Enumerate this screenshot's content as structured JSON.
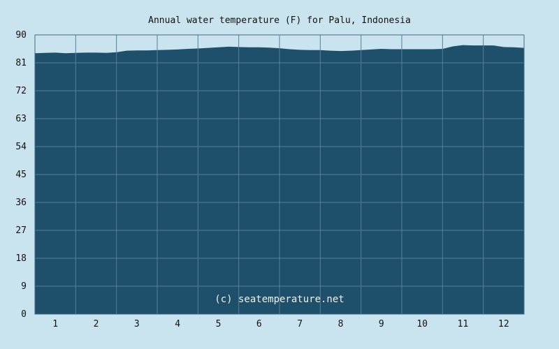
{
  "chart_data": {
    "type": "area",
    "title": "Annual water temperature (F) for Palu, Indonesia",
    "xlabel": "",
    "ylabel": "",
    "ylim": [
      0,
      90
    ],
    "yticks": [
      0,
      9,
      18,
      27,
      36,
      45,
      54,
      63,
      72,
      81,
      90
    ],
    "xlim": [
      0.5,
      12.5
    ],
    "xticks": [
      1,
      2,
      3,
      4,
      5,
      6,
      7,
      8,
      9,
      10,
      11,
      12
    ],
    "grid": true,
    "fill_color": "#1e4f6b",
    "grid_color": "#55809a",
    "background_color": "#c9e3ef",
    "x": [
      0.5,
      0.75,
      1.0,
      1.25,
      1.5,
      1.75,
      2.0,
      2.25,
      2.5,
      2.75,
      3.0,
      3.25,
      3.5,
      3.75,
      4.0,
      4.25,
      4.5,
      4.75,
      5.0,
      5.25,
      5.5,
      5.75,
      6.0,
      6.25,
      6.5,
      6.75,
      7.0,
      7.25,
      7.5,
      7.75,
      8.0,
      8.25,
      8.5,
      8.75,
      9.0,
      9.25,
      9.5,
      9.75,
      10.0,
      10.25,
      10.5,
      10.75,
      11.0,
      11.25,
      11.5,
      11.75,
      12.0,
      12.25,
      12.5
    ],
    "values": [
      84.1,
      84.2,
      84.3,
      84.1,
      84.2,
      84.3,
      84.3,
      84.2,
      84.4,
      84.9,
      85.0,
      85.0,
      85.1,
      85.2,
      85.3,
      85.5,
      85.6,
      85.8,
      86.0,
      86.2,
      86.1,
      86.0,
      86.0,
      85.9,
      85.7,
      85.4,
      85.2,
      85.1,
      85.1,
      84.9,
      84.8,
      84.9,
      85.1,
      85.3,
      85.5,
      85.4,
      85.4,
      85.4,
      85.4,
      85.4,
      85.5,
      86.3,
      86.7,
      86.6,
      86.6,
      86.6,
      86.1,
      86.0,
      85.8
    ],
    "annotation": "(c) seatemperature.net"
  }
}
